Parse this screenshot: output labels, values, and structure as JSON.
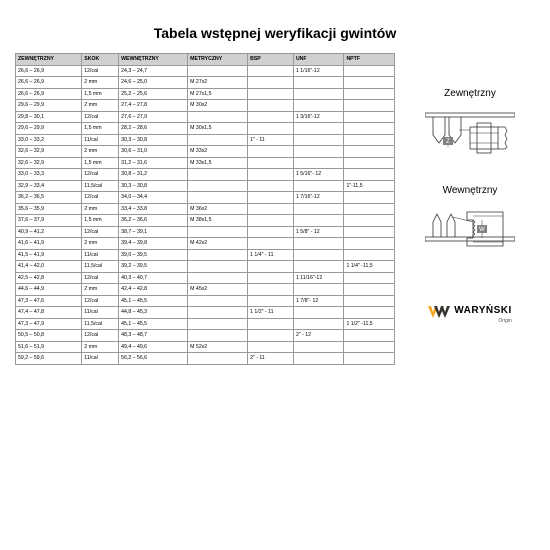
{
  "title": "Tabela wstępnej weryfikacji gwintów",
  "columns": [
    "ZEWNĘTRZNY",
    "SKOK",
    "WEWNĘTRZNY",
    "METRYCZNY",
    "BSP",
    "UNF",
    "NPTF"
  ],
  "rows": [
    [
      "26,6 – 26,9",
      "12/cal",
      "24,3 – 24,7",
      "",
      "",
      "1 1/16\"-12",
      ""
    ],
    [
      "26,6 – 26,9",
      "2 mm",
      "24,6 – 25,0",
      "M 27x2",
      "",
      "",
      ""
    ],
    [
      "26,6 – 26,9",
      "1,5 mm",
      "25,2 – 25,6",
      "M 27x1,5",
      "",
      "",
      ""
    ],
    [
      "29,6 – 29,9",
      "2 mm",
      "27,4 – 27,8",
      "M 30x2",
      "",
      "",
      ""
    ],
    [
      "29,8 – 30,1",
      "12/cal",
      "27,6 – 27,9",
      "",
      "",
      "1 3/16\"-12",
      ""
    ],
    [
      "29,6 – 29,9",
      "1,5 mm",
      "28,2 – 28,6",
      "M 30x1,5",
      "",
      "",
      ""
    ],
    [
      "33,0 – 33,2",
      "11/cal",
      "30,3 – 30,8",
      "",
      "1\" - 11",
      "",
      ""
    ],
    [
      "32,6 – 32,9",
      "2 mm",
      "30,6 – 31,0",
      "M 33x2",
      "",
      "",
      ""
    ],
    [
      "32,6 – 32,9",
      "1,5 mm",
      "31,2 – 31,6",
      "M 33x1,5",
      "",
      "",
      ""
    ],
    [
      "33,0 – 33,3",
      "12/cal",
      "30,8 – 31,2",
      "",
      "",
      "1 5/16\"- 12",
      ""
    ],
    [
      "32,9 – 33,4",
      "11,5/cal",
      "30,3 – 30,8",
      "",
      "",
      "",
      "1\"-11,5"
    ],
    [
      "36,2 – 36,5",
      "12/cal",
      "34,0 – 34,4",
      "",
      "",
      "1 7/16\"-12",
      ""
    ],
    [
      "35,6 – 35,9",
      "2 mm",
      "33,4 – 33,8",
      "M 36x2",
      "",
      "",
      ""
    ],
    [
      "37,6 – 37,9",
      "1,5 mm",
      "36,2 – 36,6",
      "M 38x1,5",
      "",
      "",
      ""
    ],
    [
      "40,9 – 41,2",
      "12/cal",
      "38,7 – 39,1",
      "",
      "",
      "1 5/8\" - 12",
      ""
    ],
    [
      "41,6 – 41,9",
      "2 mm",
      "39,4 – 39,8",
      "M 42x2",
      "",
      "",
      ""
    ],
    [
      "41,5 – 41,9",
      "11/cal",
      "39,0 – 39,5",
      "",
      "1 1/4\" - 11",
      "",
      ""
    ],
    [
      "41,4 – 42,0",
      "11,5/cal",
      "39,2 – 39,5",
      "",
      "",
      "",
      "1 1/4\" -11,5"
    ],
    [
      "42,5 – 42,8",
      "12/cal",
      "40,3 – 40,7",
      "",
      "",
      "1 11/16\"-12",
      ""
    ],
    [
      "44,6 – 44,9",
      "2 mm",
      "42,4 – 42,8",
      "M 45x2",
      "",
      "",
      ""
    ],
    [
      "47,3 – 47,6",
      "12/cal",
      "45,1 – 45,5",
      "",
      "",
      "1 7/8\"- 12",
      ""
    ],
    [
      "47,4 – 47,8",
      "11/cal",
      "44,8 – 45,3",
      "",
      "1 1/2\" - 11",
      "",
      ""
    ],
    [
      "47,3 – 47,9",
      "11,5/cal",
      "45,1 – 45,5",
      "",
      "",
      "",
      "1 1/2\" -11,5"
    ],
    [
      "50,5 – 50,8",
      "12/cal",
      "48,3 – 48,7",
      "",
      "",
      "2\" - 12",
      ""
    ],
    [
      "51,6 – 51,9",
      "2 mm",
      "49,4 – 49,6",
      "M 52x2",
      "",
      "",
      ""
    ],
    [
      "59,2 – 59,6",
      "11/cal",
      "56,2 – 56,6",
      "",
      "2\" - 11",
      "",
      ""
    ]
  ],
  "diagram1_label": "Zewnętrzny",
  "diagram2_label": "Wewnętrzny",
  "logo_text": "WARYŃSKI",
  "logo_sub": "Origin",
  "colors": {
    "header_bg": "#d0d0d0",
    "border": "#999999",
    "accent": "#f5a623"
  }
}
